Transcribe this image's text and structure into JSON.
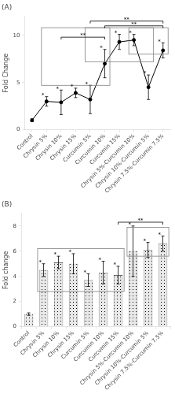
{
  "chart_data": [
    {
      "type": "line",
      "title": "(A)",
      "categories": [
        "Control",
        "Chrysin 5%",
        "Chrysin 10%",
        "Chrysin 15%",
        "Curcumin 5%",
        "Curcumin 10%",
        "Curcumin 15%",
        "Chrysin 5%-Curcumin 10%",
        "Chrysin 10%-Curcumin 5%",
        "Chrysin 7.5%-Curcumin 7.5%"
      ],
      "values": [
        1.0,
        3.0,
        2.9,
        3.9,
        3.2,
        7.0,
        9.3,
        9.5,
        4.5,
        8.4
      ],
      "errors": [
        0.15,
        0.5,
        1.3,
        0.5,
        1.5,
        1.5,
        0.8,
        0.6,
        1.3,
        0.8
      ],
      "star_labels": [
        null,
        "*",
        "*",
        "*",
        "*",
        "*",
        "*",
        "*",
        "*",
        "*"
      ],
      "color": "#000000",
      "marker": "circle",
      "ylabel": "Fold Change",
      "ylim": [
        0,
        12
      ],
      "yticks": [
        0,
        5,
        10
      ],
      "grid": false,
      "boxes": [
        {
          "from": "Chrysin 5%",
          "to": "Curcumin 10%",
          "y0": 4.7,
          "y1": 10.8
        },
        {
          "from": "Curcumin 5%",
          "to": "Chrysin 10%-Curcumin 5%",
          "y0": 7.2,
          "y1": 10.8
        },
        {
          "from": "Chrysin 5%-Curcumin 10%",
          "to": "Chrysin 7.5%-Curcumin 7.5%",
          "y0": 8.0,
          "y1": 10.8
        }
      ],
      "sig_bars": [
        {
          "from": "Curcumin 5%",
          "to": "Chrysin 7.5%-Curcumin 7.5%",
          "y": 11.5,
          "label": "**"
        },
        {
          "from": "Curcumin 10%",
          "to": "Chrysin 7.5%-Curcumin 7.5%",
          "y": 11.0,
          "label": "**"
        },
        {
          "from": "Chrysin 10%",
          "to": "Curcumin 10%",
          "y": 9.8,
          "label": "**"
        }
      ]
    },
    {
      "type": "bar",
      "title": "(B)",
      "categories": [
        "Control",
        "Chrysin 5%",
        "Chrysin 10%",
        "Chrysin 15%",
        "Curcumin 5%",
        "Curcumin 10%",
        "Curcumin 15%",
        "Chrysin 5%-Curcumin 10%",
        "Chrysin 10%-Curcumin 5%",
        "Chrysin 7.5%-Curcumin 7.5%"
      ],
      "values": [
        1.0,
        4.5,
        5.1,
        5.0,
        3.7,
        4.3,
        4.1,
        6.0,
        6.1,
        6.6
      ],
      "errors": [
        0.1,
        0.5,
        0.5,
        0.8,
        0.5,
        0.9,
        0.7,
        2.0,
        0.6,
        0.6
      ],
      "star_labels": [
        null,
        "*",
        "*",
        "*",
        "*",
        "*",
        "*",
        "*",
        "*",
        "*"
      ],
      "color": "#e8e8e8",
      "ylabel": "Fold change",
      "ylim": [
        0,
        9
      ],
      "yticks": [
        0,
        2,
        4,
        6,
        8
      ],
      "grid": false,
      "boxes": [
        {
          "from": "Chrysin 5%",
          "to": "Curcumin 15%",
          "y0": 2.8,
          "y1": 6.2
        },
        {
          "from": "Chrysin 5%-Curcumin 10%",
          "to": "Chrysin 7.5%-Curcumin 7.5%",
          "y0": 5.6,
          "y1": 7.9
        }
      ],
      "sig_bars": [
        {
          "from": "Curcumin 15%",
          "to": "Chrysin 7.5%-Curcumin 7.5%",
          "y": 8.3,
          "label": "**"
        }
      ]
    }
  ]
}
